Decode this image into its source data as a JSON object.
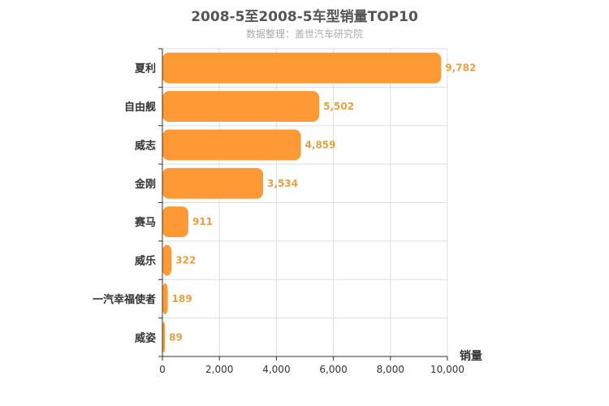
{
  "chart_data": {
    "type": "bar",
    "orientation": "horizontal",
    "title": "2008-5至2008-5车型销量TOP10",
    "subtitle": "数据整理：盖世汽车研究院",
    "xlabel": "销量",
    "ylabel": "",
    "categories": [
      "夏利",
      "自由舰",
      "威志",
      "金刚",
      "赛马",
      "威乐",
      "一汽幸福使者",
      "威姿"
    ],
    "values": [
      9782,
      5502,
      4859,
      3534,
      911,
      322,
      189,
      89
    ],
    "value_labels": [
      "9,782",
      "5,502",
      "4,859",
      "3,534",
      "911",
      "322",
      "189",
      "89"
    ],
    "xlim": [
      0,
      10000
    ],
    "xticks": [
      0,
      2000,
      4000,
      6000,
      8000,
      10000
    ],
    "xtick_labels": [
      "0",
      "2,000",
      "4,000",
      "6,000",
      "8,000",
      "10,000"
    ],
    "grid": true,
    "legend": "none",
    "colors": {
      "bar": "#FF9933",
      "value_label": "#E8A040",
      "axis": "#333333",
      "grid": "#dddddd"
    }
  }
}
